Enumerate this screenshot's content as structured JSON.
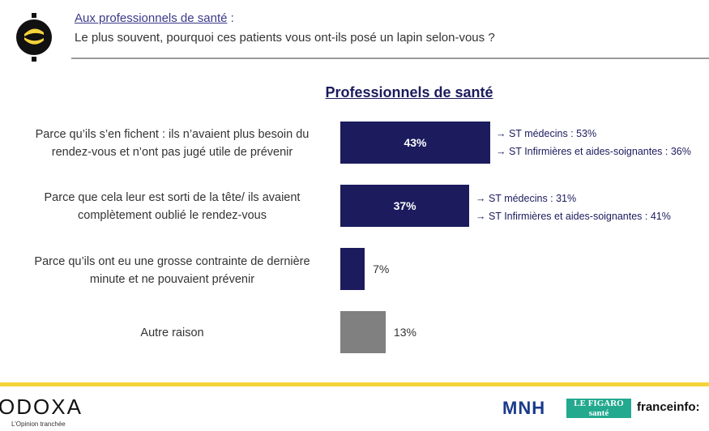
{
  "header": {
    "audience": "Aux professionnels de santé",
    "audience_suffix": " :",
    "question": "Le plus souvent, pourquoi ces patients vous ont-ils posé un lapin selon-vous ?"
  },
  "colors": {
    "primary": "#1b1b5e",
    "grey": "#808080",
    "accent": "#f5d33b"
  },
  "chart_data": {
    "type": "bar",
    "orientation": "horizontal",
    "title": "Professionnels de santé",
    "unit": "%",
    "categories": [
      "Parce qu’ils s’en fichent : ils n’avaient plus besoin du rendez-vous et n’ont pas jugé utile de prévenir",
      "Parce que cela leur est sorti de la tête/ ils avaient complètement oublié le rendez-vous",
      "Parce qu’ils ont eu une grosse contrainte de dernière minute et ne pouvaient prévenir",
      "Autre raison"
    ],
    "values": [
      43,
      37,
      7,
      13
    ],
    "value_labels": [
      "43%",
      "37%",
      "7%",
      "13%"
    ],
    "bar_colors": [
      "#1b1b5e",
      "#1b1b5e",
      "#1b1b5e",
      "#808080"
    ],
    "annotations": [
      [
        "→ ST médecins : 53%",
        "→ ST Infirmières et aides-soignantes : 36%"
      ],
      [
        "→ ST médecins : 31%",
        "→ ST Infirmières et aides-soignantes : 41%"
      ]
    ],
    "xlim": [
      0,
      100
    ]
  },
  "footer": {
    "brand": "ODOXA",
    "tagline": "L’Opinion tranchée",
    "partners": {
      "mnh": "MNH",
      "figaro_top": "LE FIGARO",
      "figaro_bottom": "santé",
      "franceinfo": "franceinfo:"
    }
  }
}
